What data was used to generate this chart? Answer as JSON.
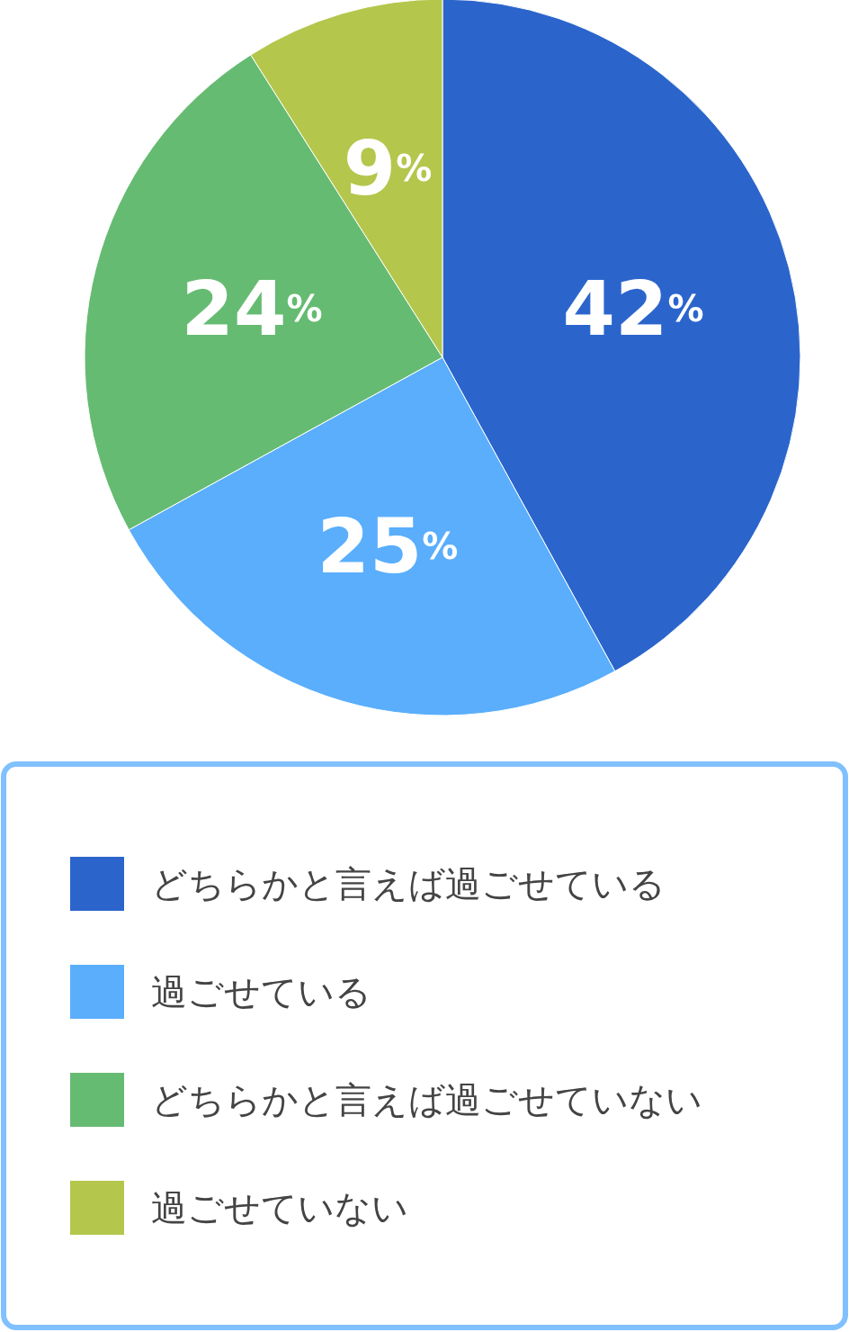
{
  "chart_data": {
    "type": "pie",
    "categories": [
      "どちらかと言えば過ごせている",
      "過ごせている",
      "どちらかと言えば過ごせていない",
      "過ごせていない"
    ],
    "values": [
      42,
      25,
      24,
      9
    ],
    "colors": [
      "#2b65cc",
      "#5aaefc",
      "#66bb72",
      "#b5c64c"
    ],
    "value_labels": [
      "42%",
      "25%",
      "24%",
      "9%"
    ],
    "legend": "bottom"
  }
}
